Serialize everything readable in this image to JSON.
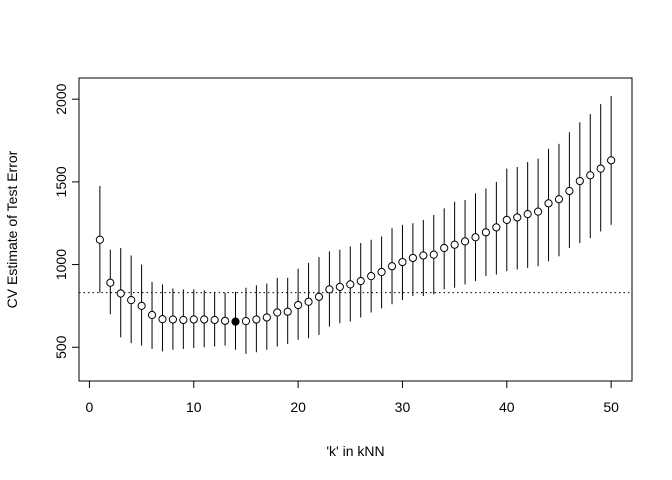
{
  "chart_data": {
    "type": "scatter",
    "title": "",
    "xlabel": "'k' in kNN",
    "ylabel": "CV Estimate of Test Error",
    "xlim": [
      -1,
      52
    ],
    "ylim": [
      296,
      2128
    ],
    "x_ticks": [
      0,
      10,
      20,
      30,
      40,
      50
    ],
    "x_tick_labels": [
      "0",
      "10",
      "20",
      "30",
      "40",
      "50"
    ],
    "y_ticks": [
      500,
      1000,
      1500,
      2000
    ],
    "y_tick_labels": [
      "500",
      "1000",
      "1500",
      "2000"
    ],
    "grid": false,
    "legend": "none",
    "reference_line": {
      "y": 830,
      "style": "dotted"
    },
    "highlighted_point": {
      "x": 14,
      "filled": true
    },
    "series": [
      {
        "x": [
          1,
          2,
          3,
          4,
          5,
          6,
          7,
          8,
          9,
          10,
          11,
          12,
          13,
          14,
          15,
          16,
          17,
          18,
          19,
          20,
          21,
          22,
          23,
          24,
          25,
          26,
          27,
          28,
          29,
          30,
          31,
          32,
          33,
          34,
          35,
          36,
          37,
          38,
          39,
          40,
          41,
          42,
          43,
          44,
          45,
          46,
          47,
          48,
          49,
          50
        ],
        "y": [
          1150,
          890,
          825,
          785,
          750,
          695,
          670,
          668,
          665,
          668,
          668,
          665,
          660,
          655,
          658,
          668,
          680,
          710,
          715,
          755,
          775,
          805,
          850,
          865,
          880,
          900,
          930,
          955,
          990,
          1015,
          1040,
          1055,
          1060,
          1100,
          1120,
          1140,
          1165,
          1195,
          1225,
          1270,
          1285,
          1305,
          1320,
          1370,
          1395,
          1445,
          1505,
          1540,
          1580,
          1630
        ],
        "lower": [
          830,
          700,
          560,
          525,
          510,
          490,
          475,
          485,
          490,
          495,
          500,
          505,
          510,
          485,
          460,
          470,
          485,
          505,
          520,
          545,
          555,
          575,
          625,
          645,
          655,
          680,
          710,
          735,
          760,
          785,
          810,
          810,
          820,
          850,
          860,
          880,
          900,
          930,
          940,
          960,
          970,
          980,
          990,
          1020,
          1050,
          1100,
          1130,
          1160,
          1200,
          1240
        ],
        "upper": [
          1475,
          1090,
          1100,
          1055,
          1000,
          895,
          880,
          855,
          850,
          850,
          845,
          835,
          830,
          835,
          860,
          875,
          885,
          920,
          920,
          975,
          1010,
          1045,
          1080,
          1090,
          1110,
          1130,
          1150,
          1170,
          1220,
          1240,
          1250,
          1270,
          1300,
          1340,
          1380,
          1390,
          1430,
          1460,
          1500,
          1580,
          1590,
          1620,
          1640,
          1700,
          1730,
          1800,
          1860,
          1910,
          1970,
          2020
        ]
      }
    ]
  }
}
